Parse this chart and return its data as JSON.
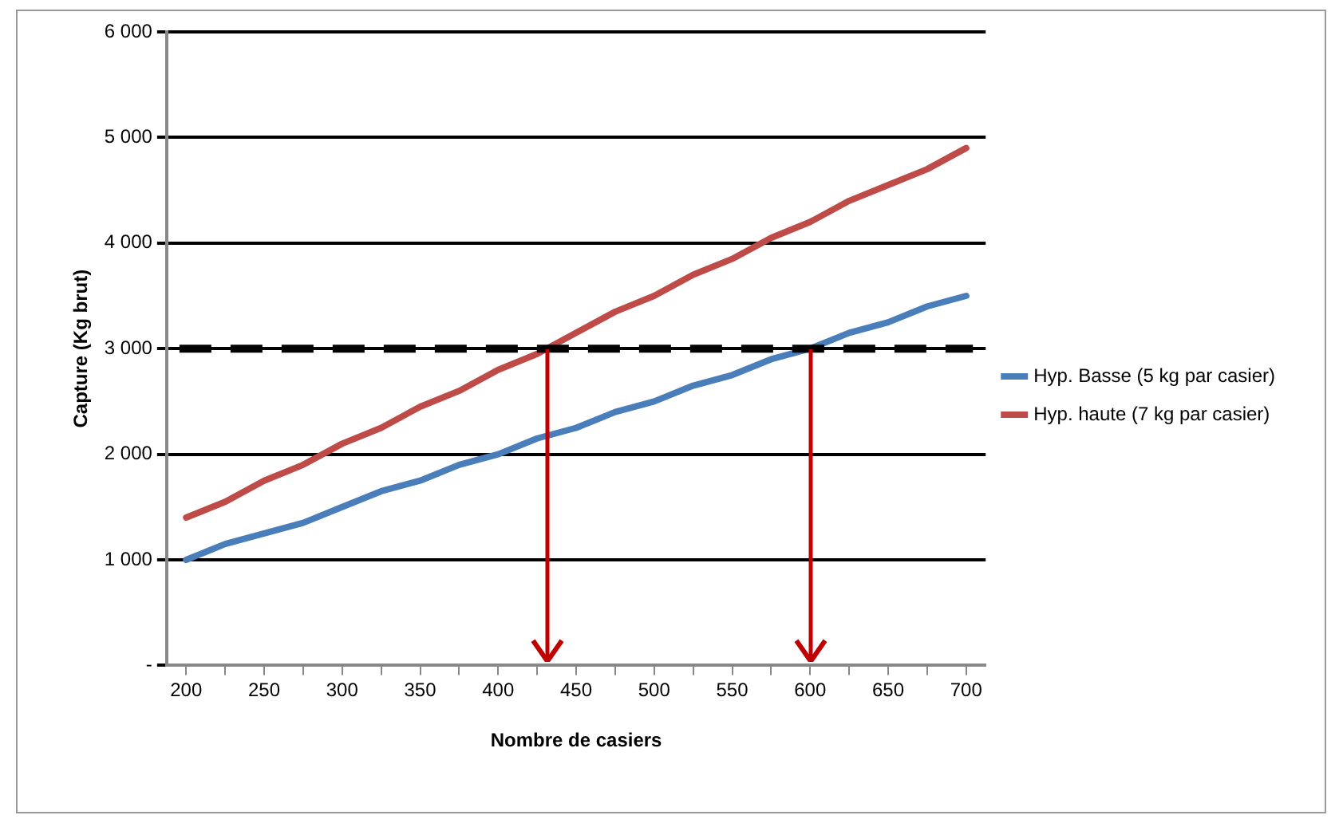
{
  "chart_data": {
    "type": "line",
    "xlabel": "Nombre de casiers",
    "ylabel": "Capture (Kg brut)",
    "x": [
      200,
      225,
      250,
      275,
      300,
      325,
      350,
      375,
      400,
      425,
      450,
      475,
      500,
      525,
      550,
      575,
      600,
      625,
      650,
      675,
      700
    ],
    "series": [
      {
        "name": "Hyp. Basse (5 kg par casier)",
        "color": "#4a7ebb",
        "values": [
          1000,
          1150,
          1250,
          1350,
          1500,
          1650,
          1750,
          1900,
          2000,
          2150,
          2250,
          2400,
          2500,
          2650,
          2750,
          2900,
          3000,
          3150,
          3250,
          3400,
          3500
        ]
      },
      {
        "name": "Hyp. haute (7 kg par casier)",
        "color": "#be4b48",
        "values": [
          1400,
          1550,
          1750,
          1900,
          2100,
          2250,
          2450,
          2600,
          2800,
          2950,
          3150,
          3350,
          3500,
          3700,
          3850,
          4050,
          4200,
          4400,
          4550,
          4700,
          4900
        ]
      }
    ],
    "xlim": [
      187.5,
      712.5
    ],
    "xticks": [
      200,
      {
        "value": 225,
        "label": null
      },
      250,
      {
        "value": 275,
        "label": null
      },
      300,
      {
        "value": 325,
        "label": null
      },
      350,
      {
        "value": 375,
        "label": null
      },
      400,
      {
        "value": 425,
        "label": null
      },
      450,
      {
        "value": 475,
        "label": null
      },
      500,
      {
        "value": 525,
        "label": null
      },
      550,
      {
        "value": 575,
        "label": null
      },
      600,
      {
        "value": 625,
        "label": null
      },
      650,
      {
        "value": 675,
        "label": null
      },
      700
    ],
    "ylim": [
      0,
      6000
    ],
    "yticks": [
      {
        "value": 0,
        "label": "-"
      },
      {
        "value": 1000,
        "label": "1 000"
      },
      {
        "value": 2000,
        "label": "2 000"
      },
      {
        "value": 3000,
        "label": "3 000"
      },
      {
        "value": 4000,
        "label": "4 000"
      },
      {
        "value": 5000,
        "label": "5 000"
      },
      {
        "value": 6000,
        "label": "6 000"
      }
    ],
    "ref_lines": [
      {
        "axis": "y",
        "value": 3000,
        "color": "#000000",
        "line_style": "dashed"
      }
    ],
    "grid": "y",
    "legend": "right",
    "marker": "none",
    "line_style": "solid"
  }
}
